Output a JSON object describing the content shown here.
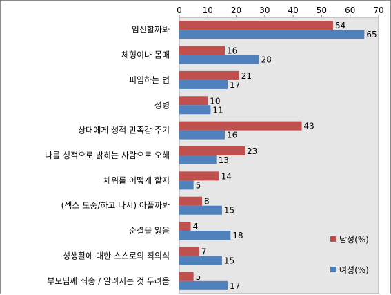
{
  "chart_data": {
    "type": "bar",
    "orientation": "horizontal",
    "xlim": [
      0,
      70
    ],
    "xticks": [
      0,
      10,
      20,
      30,
      40,
      50,
      60,
      70
    ],
    "axis_position": "top",
    "grid": false,
    "legend_placement": "bottom-right",
    "categories": [
      "임신할까봐",
      "체형이나 몸매",
      "피임하는 법",
      "성병",
      "상대에게 성적 만족감 주기",
      "나를 성적으로 밝히는 사람으로 오해",
      "체위를 어떻게 할지",
      "(섹스 도중/하고 나서) 아플까봐",
      "순결을 잃음",
      "성생활에 대한 스스로의 죄의식",
      "부모님께 죄송 / 알려지는 것 두려움"
    ],
    "series": [
      {
        "name": "남성(%)",
        "color": "#C0504D",
        "values": [
          54,
          16,
          21,
          10,
          43,
          23,
          14,
          8,
          4,
          7,
          5
        ]
      },
      {
        "name": "여성(%)",
        "color": "#4F81BD",
        "values": [
          65,
          28,
          17,
          11,
          16,
          13,
          5,
          15,
          18,
          15,
          17
        ]
      }
    ],
    "plot_background": "#E6E6E6"
  }
}
